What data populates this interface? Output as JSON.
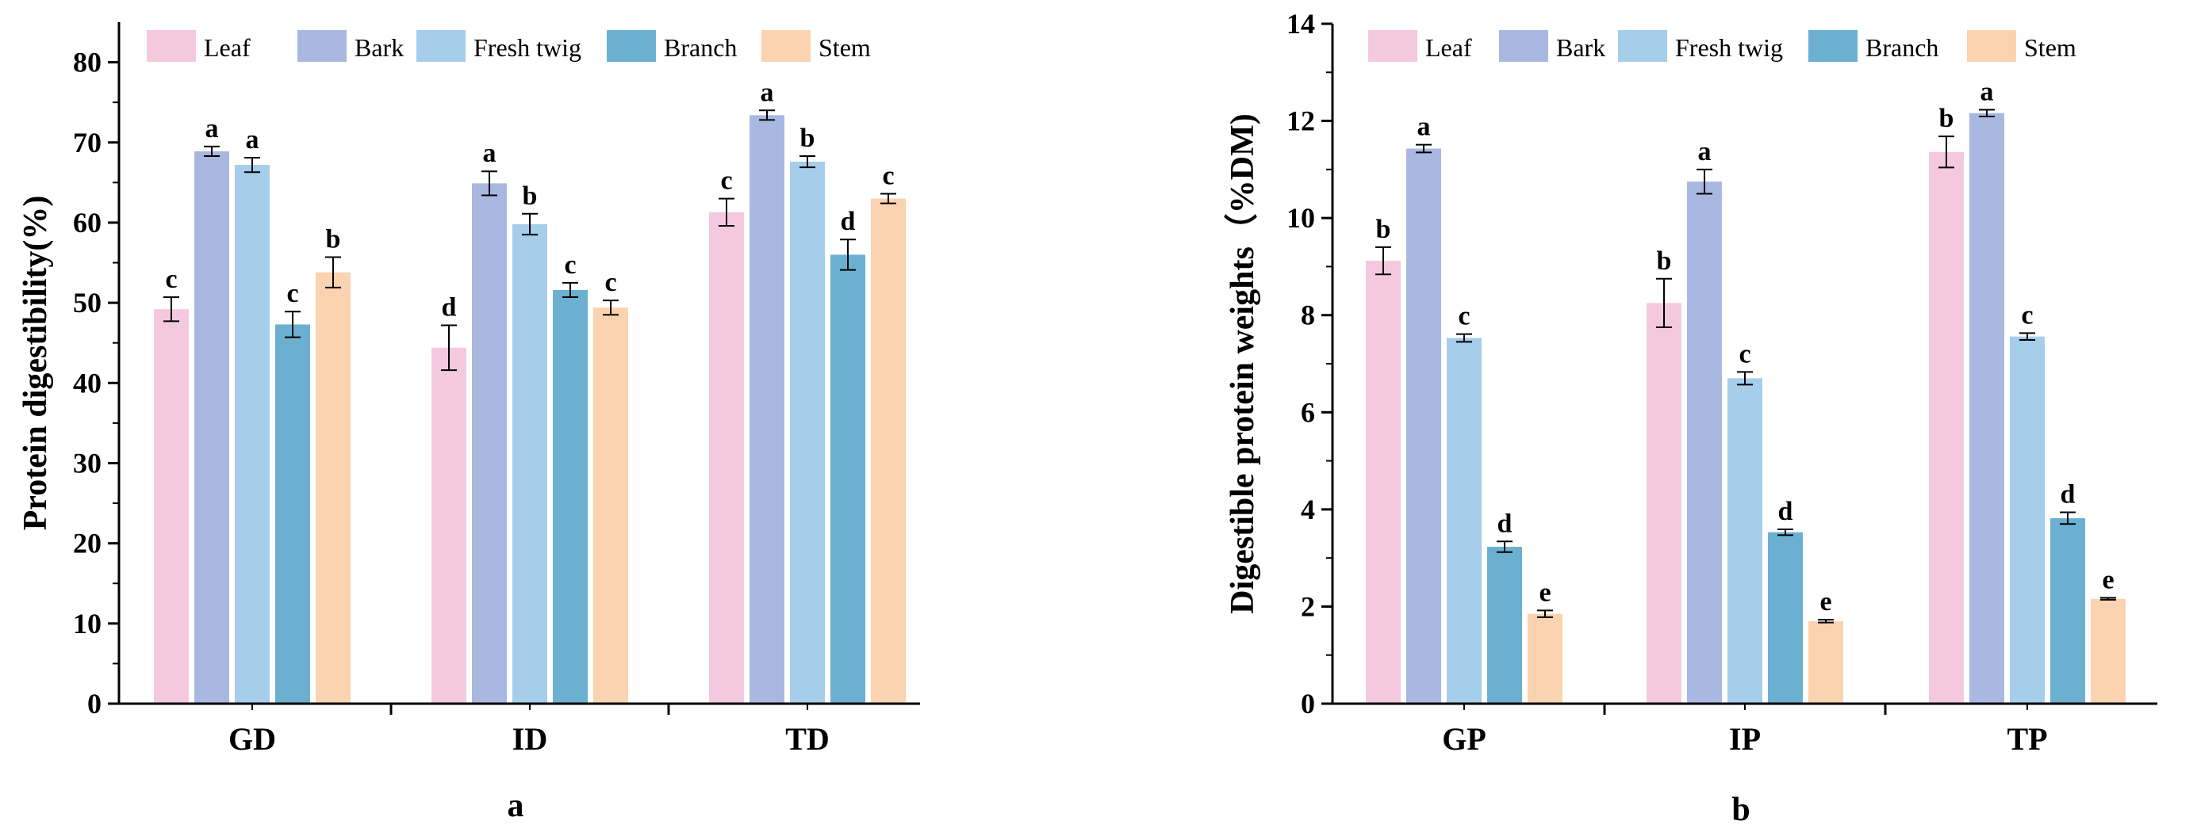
{
  "colors": {
    "Leaf": "#f4c9df",
    "Bark": "#a9b8e0",
    "Fresh twig": "#a6cdea",
    "Branch": "#6cb0d1",
    "Stem": "#fbd3b0"
  },
  "chart_data": [
    {
      "type": "bar",
      "panel_label": "a",
      "ylabel": "Protein digestibility(%)",
      "xlabel": "",
      "ylim": [
        0,
        85
      ],
      "yticks": [
        0,
        10,
        20,
        30,
        40,
        50,
        60,
        70,
        80
      ],
      "legend_position": "top",
      "categories": [
        "GD",
        "ID",
        "TD"
      ],
      "series": [
        {
          "name": "Leaf",
          "values": [
            49.2,
            44.4,
            61.3
          ],
          "errors": [
            1.5,
            2.8,
            1.7
          ],
          "labels": [
            "c",
            "d",
            "c"
          ]
        },
        {
          "name": "Bark",
          "values": [
            68.9,
            64.9,
            73.4
          ],
          "errors": [
            0.6,
            1.5,
            0.6
          ],
          "labels": [
            "a",
            "a",
            "a"
          ]
        },
        {
          "name": "Fresh twig",
          "values": [
            67.2,
            59.8,
            67.6
          ],
          "errors": [
            0.9,
            1.3,
            0.7
          ],
          "labels": [
            "a",
            "b",
            "b"
          ]
        },
        {
          "name": "Branch",
          "values": [
            47.3,
            51.6,
            56.0
          ],
          "errors": [
            1.6,
            0.9,
            1.9
          ],
          "labels": [
            "c",
            "c",
            "d"
          ]
        },
        {
          "name": "Stem",
          "values": [
            53.8,
            49.4,
            63.0
          ],
          "errors": [
            1.9,
            0.9,
            0.6
          ],
          "labels": [
            "b",
            "c",
            "c"
          ]
        }
      ]
    },
    {
      "type": "bar",
      "panel_label": "b",
      "ylabel": "Digestible protein weights（%DM)",
      "xlabel": "",
      "ylim": [
        0,
        14
      ],
      "yticks": [
        0,
        2,
        4,
        6,
        8,
        10,
        12,
        14
      ],
      "legend_position": "top",
      "categories": [
        "GP",
        "IP",
        "TP"
      ],
      "series": [
        {
          "name": "Leaf",
          "values": [
            9.12,
            8.25,
            11.36
          ],
          "errors": [
            0.28,
            0.5,
            0.32
          ],
          "labels": [
            "b",
            "b",
            "b"
          ]
        },
        {
          "name": "Bark",
          "values": [
            11.43,
            10.75,
            12.16
          ],
          "errors": [
            0.08,
            0.25,
            0.07
          ],
          "labels": [
            "a",
            "a",
            "a"
          ]
        },
        {
          "name": "Fresh twig",
          "values": [
            7.53,
            6.7,
            7.56
          ],
          "errors": [
            0.08,
            0.13,
            0.07
          ],
          "labels": [
            "c",
            "c",
            "c"
          ]
        },
        {
          "name": "Branch",
          "values": [
            3.23,
            3.53,
            3.82
          ],
          "errors": [
            0.11,
            0.06,
            0.12
          ],
          "labels": [
            "d",
            "d",
            "d"
          ]
        },
        {
          "name": "Stem",
          "values": [
            1.85,
            1.7,
            2.16
          ],
          "errors": [
            0.07,
            0.03,
            0.02
          ],
          "labels": [
            "e",
            "e",
            "e"
          ]
        }
      ]
    }
  ]
}
